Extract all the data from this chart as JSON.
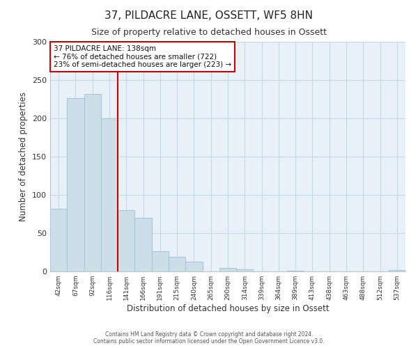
{
  "title": "37, PILDACRE LANE, OSSETT, WF5 8HN",
  "subtitle": "Size of property relative to detached houses in Ossett",
  "xlabel": "Distribution of detached houses by size in Ossett",
  "ylabel": "Number of detached properties",
  "bar_labels": [
    "42sqm",
    "67sqm",
    "92sqm",
    "116sqm",
    "141sqm",
    "166sqm",
    "191sqm",
    "215sqm",
    "240sqm",
    "265sqm",
    "290sqm",
    "314sqm",
    "339sqm",
    "364sqm",
    "389sqm",
    "413sqm",
    "438sqm",
    "463sqm",
    "488sqm",
    "512sqm",
    "537sqm"
  ],
  "bar_values": [
    82,
    226,
    232,
    200,
    80,
    70,
    26,
    19,
    13,
    0,
    5,
    3,
    0,
    0,
    1,
    0,
    0,
    0,
    0,
    0,
    2
  ],
  "bar_color": "#ccdee8",
  "bar_edge_color": "#a8c8e0",
  "highlight_bar_index": 3,
  "highlight_color": "#cc0000",
  "annotation_title": "37 PILDACRE LANE: 138sqm",
  "annotation_line1": "← 76% of detached houses are smaller (722)",
  "annotation_line2": "23% of semi-detached houses are larger (223) →",
  "annotation_box_color": "#ffffff",
  "annotation_box_edge": "#cc0000",
  "ylim": [
    0,
    300
  ],
  "yticks": [
    0,
    50,
    100,
    150,
    200,
    250,
    300
  ],
  "footer1": "Contains HM Land Registry data © Crown copyright and database right 2024.",
  "footer2": "Contains public sector information licensed under the Open Government Licence v3.0.",
  "bg_color": "#ffffff",
  "plot_bg_color": "#e8f0f8",
  "grid_color": "#c8d8e8",
  "title_fontsize": 11,
  "subtitle_fontsize": 9
}
